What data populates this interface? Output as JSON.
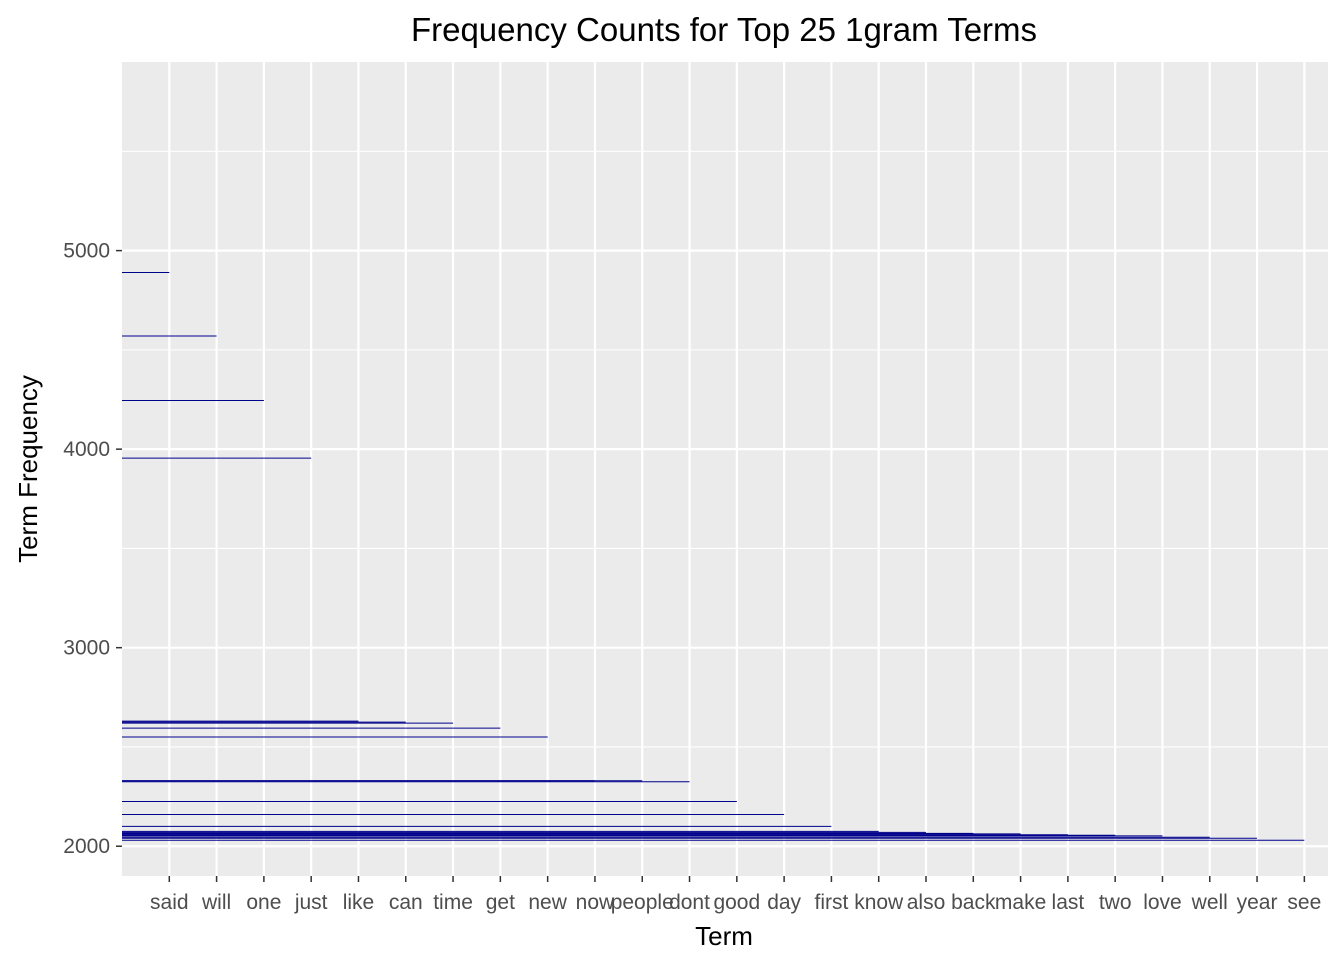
{
  "chart_data": {
    "type": "bar",
    "title": "Frequency Counts for Top 25 1gram Terms",
    "xlabel": "Term",
    "ylabel": "Term Frequency",
    "categories": [
      "said",
      "will",
      "one",
      "just",
      "like",
      "can",
      "time",
      "get",
      "new",
      "now",
      "people",
      "dont",
      "good",
      "day",
      "first",
      "know",
      "also",
      "back",
      "make",
      "last",
      "two",
      "love",
      "well",
      "year",
      "see"
    ],
    "values": [
      4890,
      4570,
      4245,
      3955,
      2630,
      2625,
      2620,
      2595,
      2550,
      2330,
      2330,
      2325,
      2225,
      2160,
      2100,
      2075,
      2070,
      2065,
      2062,
      2058,
      2055,
      2052,
      2045,
      2040,
      2030
    ],
    "ylim": [
      1850,
      5950
    ],
    "yticks": [
      2000,
      3000,
      4000,
      5000
    ],
    "grid": true,
    "colors": {
      "panel": "#EBEBEB",
      "grid": "#FFFFFF",
      "bar_outline": "#00008B",
      "bar_fill": "#0000CD",
      "axis_text": "#4D4D4D",
      "tick": "#333333"
    }
  }
}
